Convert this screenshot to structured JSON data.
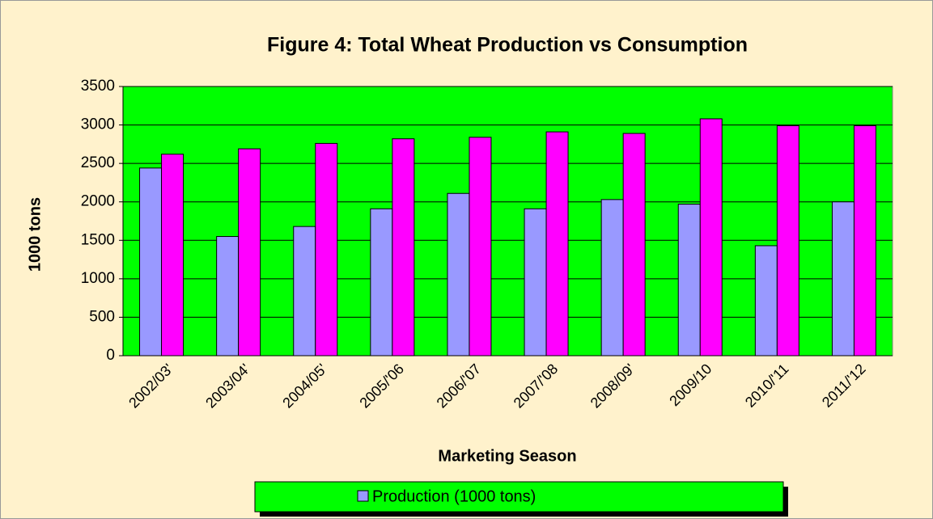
{
  "chart_data": {
    "type": "bar",
    "title": "Figure 4: Total Wheat Production vs Consumption",
    "x_label": "Marketing Season",
    "y_label": "1000 tons",
    "categories": [
      "2002/03'",
      "2003/04'",
      "2004/05'",
      "2005/'06",
      "2006/'07",
      "2007/'08",
      "2008/09'",
      "2009/10",
      "2010/'11",
      "2011/'12"
    ],
    "series": [
      {
        "name": "Production (1000 tons)",
        "color": "#9999ff",
        "values": [
          2440,
          1550,
          1680,
          1910,
          2110,
          1910,
          2030,
          1970,
          1430,
          2000
        ]
      },
      {
        "color": "#ff00ff",
        "values": [
          2620,
          2690,
          2760,
          2820,
          2840,
          2910,
          2890,
          3080,
          2990,
          2990
        ]
      }
    ],
    "ylim": [
      0,
      3500
    ],
    "yticks": [
      0,
      500,
      1000,
      1500,
      2000,
      2500,
      3000,
      3500
    ],
    "grid": true,
    "plot_background": "#00ff00",
    "legend": "bottom"
  }
}
